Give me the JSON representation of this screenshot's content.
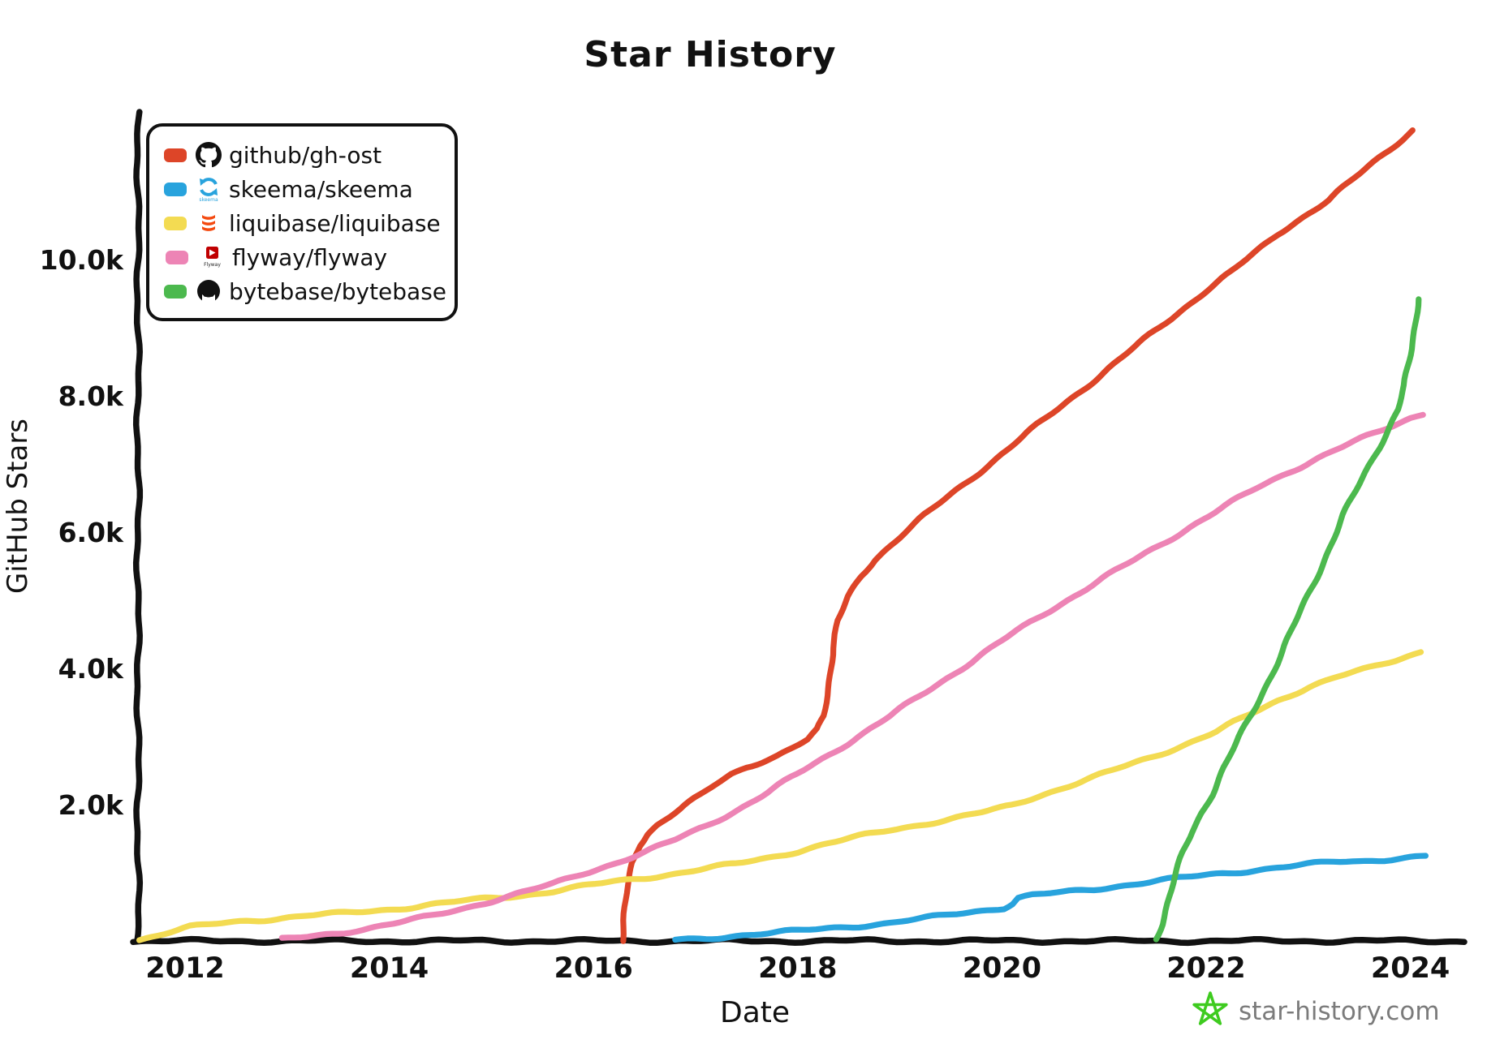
{
  "title": "Star History",
  "y_axis": {
    "label": "GitHub Stars",
    "ticks": [
      {
        "label": "10.0k",
        "value": 10000
      },
      {
        "label": "8.0k",
        "value": 8000
      },
      {
        "label": "6.0k",
        "value": 6000
      },
      {
        "label": "4.0k",
        "value": 4000
      },
      {
        "label": "2.0k",
        "value": 2000
      }
    ]
  },
  "x_axis": {
    "label": "Date",
    "ticks": [
      {
        "label": "2012",
        "year": 2012
      },
      {
        "label": "2014",
        "year": 2014
      },
      {
        "label": "2016",
        "year": 2016
      },
      {
        "label": "2018",
        "year": 2018
      },
      {
        "label": "2020",
        "year": 2020
      },
      {
        "label": "2022",
        "year": 2022
      },
      {
        "label": "2024",
        "year": 2024
      }
    ]
  },
  "legend": {
    "items": [
      {
        "label": "github/gh-ost",
        "color": "#dd4528",
        "icon": "github-icon"
      },
      {
        "label": "skeema/skeema",
        "color": "#28a3dd",
        "icon": "skeema-icon"
      },
      {
        "label": "liquibase/liquibase",
        "color": "#f3db52",
        "icon": "liquibase-icon"
      },
      {
        "label": "flyway/flyway",
        "color": "#ed84b5",
        "icon": "flyway-icon"
      },
      {
        "label": "bytebase/bytebase",
        "color": "#4cb94e",
        "icon": "bytebase-icon"
      }
    ]
  },
  "footer": {
    "site": "star-history.com",
    "star_color": "#3ecb1f",
    "text_color": "#7b7b7b"
  },
  "chart_data": {
    "type": "line",
    "title": "Star History",
    "xlabel": "Date",
    "ylabel": "GitHub Stars",
    "x_range": [
      2011.5,
      2024.45
    ],
    "y_range": [
      0,
      12000
    ],
    "grid": false,
    "legend_position": "top-left",
    "axis_color": "#111111",
    "series": [
      {
        "name": "github/gh-ost",
        "color": "#dd4528",
        "points": [
          [
            2016.28,
            0
          ],
          [
            2016.31,
            400
          ],
          [
            2016.34,
            800
          ],
          [
            2016.38,
            1150
          ],
          [
            2016.44,
            1400
          ],
          [
            2016.52,
            1570
          ],
          [
            2016.62,
            1700
          ],
          [
            2016.75,
            1830
          ],
          [
            2016.9,
            1990
          ],
          [
            2017.05,
            2130
          ],
          [
            2017.2,
            2300
          ],
          [
            2017.35,
            2450
          ],
          [
            2017.5,
            2560
          ],
          [
            2017.65,
            2640
          ],
          [
            2017.8,
            2720
          ],
          [
            2017.95,
            2830
          ],
          [
            2018.1,
            2950
          ],
          [
            2018.2,
            3100
          ],
          [
            2018.26,
            3300
          ],
          [
            2018.3,
            3800
          ],
          [
            2018.34,
            4300
          ],
          [
            2018.4,
            4700
          ],
          [
            2018.5,
            5050
          ],
          [
            2018.62,
            5350
          ],
          [
            2018.75,
            5600
          ],
          [
            2018.9,
            5800
          ],
          [
            2019.05,
            6000
          ],
          [
            2019.25,
            6250
          ],
          [
            2019.5,
            6550
          ],
          [
            2019.75,
            6850
          ],
          [
            2020,
            7150
          ],
          [
            2020.25,
            7450
          ],
          [
            2020.5,
            7750
          ],
          [
            2020.75,
            8050
          ],
          [
            2021,
            8350
          ],
          [
            2021.25,
            8650
          ],
          [
            2021.5,
            8950
          ],
          [
            2021.75,
            9250
          ],
          [
            2022,
            9550
          ],
          [
            2022.25,
            9820
          ],
          [
            2022.5,
            10120
          ],
          [
            2022.7,
            10380
          ],
          [
            2022.85,
            10530
          ],
          [
            2023,
            10680
          ],
          [
            2023.2,
            10870
          ],
          [
            2023.4,
            11120
          ],
          [
            2023.6,
            11380
          ],
          [
            2023.8,
            11630
          ],
          [
            2024.02,
            11900
          ]
        ]
      },
      {
        "name": "skeema/skeema",
        "color": "#28a3dd",
        "points": [
          [
            2016.8,
            10
          ],
          [
            2017.1,
            40
          ],
          [
            2017.4,
            80
          ],
          [
            2017.7,
            110
          ],
          [
            2018,
            145
          ],
          [
            2018.3,
            190
          ],
          [
            2018.6,
            225
          ],
          [
            2018.9,
            260
          ],
          [
            2019.2,
            320
          ],
          [
            2019.5,
            390
          ],
          [
            2019.8,
            450
          ],
          [
            2020.02,
            490
          ],
          [
            2020.1,
            550
          ],
          [
            2020.16,
            630
          ],
          [
            2020.3,
            670
          ],
          [
            2020.6,
            710
          ],
          [
            2020.9,
            760
          ],
          [
            2021.2,
            820
          ],
          [
            2021.5,
            880
          ],
          [
            2021.8,
            930
          ],
          [
            2022.1,
            980
          ],
          [
            2022.4,
            1030
          ],
          [
            2022.7,
            1080
          ],
          [
            2023,
            1120
          ],
          [
            2023.25,
            1160
          ],
          [
            2023.5,
            1170
          ],
          [
            2023.75,
            1200
          ],
          [
            2024,
            1230
          ],
          [
            2024.15,
            1245
          ]
        ]
      },
      {
        "name": "liquibase/liquibase",
        "color": "#f3db52",
        "points": [
          [
            2011.55,
            20
          ],
          [
            2011.8,
            110
          ],
          [
            2012.05,
            200
          ],
          [
            2012.3,
            250
          ],
          [
            2012.6,
            300
          ],
          [
            2012.9,
            330
          ],
          [
            2013.2,
            370
          ],
          [
            2013.5,
            400
          ],
          [
            2013.8,
            440
          ],
          [
            2014.1,
            480
          ],
          [
            2014.4,
            530
          ],
          [
            2014.7,
            580
          ],
          [
            2015,
            630
          ],
          [
            2015.3,
            670
          ],
          [
            2015.6,
            730
          ],
          [
            2015.9,
            800
          ],
          [
            2016.2,
            870
          ],
          [
            2016.5,
            930
          ],
          [
            2016.8,
            990
          ],
          [
            2017.1,
            1060
          ],
          [
            2017.4,
            1130
          ],
          [
            2017.7,
            1220
          ],
          [
            2018,
            1320
          ],
          [
            2018.3,
            1430
          ],
          [
            2018.6,
            1530
          ],
          [
            2018.9,
            1630
          ],
          [
            2019.2,
            1710
          ],
          [
            2019.5,
            1790
          ],
          [
            2019.8,
            1880
          ],
          [
            2020.1,
            1990
          ],
          [
            2020.35,
            2130
          ],
          [
            2020.6,
            2250
          ],
          [
            2020.9,
            2400
          ],
          [
            2021.2,
            2560
          ],
          [
            2021.5,
            2720
          ],
          [
            2021.8,
            2890
          ],
          [
            2022.1,
            3070
          ],
          [
            2022.4,
            3300
          ],
          [
            2022.7,
            3530
          ],
          [
            2023,
            3730
          ],
          [
            2023.3,
            3880
          ],
          [
            2023.6,
            4000
          ],
          [
            2023.85,
            4120
          ],
          [
            2024.1,
            4250
          ]
        ]
      },
      {
        "name": "flyway/flyway",
        "color": "#ed84b5",
        "points": [
          [
            2012.95,
            20
          ],
          [
            2013.2,
            60
          ],
          [
            2013.5,
            120
          ],
          [
            2013.8,
            190
          ],
          [
            2014.1,
            270
          ],
          [
            2014.4,
            360
          ],
          [
            2014.7,
            470
          ],
          [
            2015,
            590
          ],
          [
            2015.3,
            710
          ],
          [
            2015.6,
            830
          ],
          [
            2015.9,
            990
          ],
          [
            2016.2,
            1140
          ],
          [
            2016.5,
            1300
          ],
          [
            2016.8,
            1480
          ],
          [
            2017.1,
            1690
          ],
          [
            2017.4,
            1920
          ],
          [
            2017.7,
            2170
          ],
          [
            2018,
            2450
          ],
          [
            2018.3,
            2730
          ],
          [
            2018.6,
            3010
          ],
          [
            2018.9,
            3290
          ],
          [
            2019.2,
            3600
          ],
          [
            2019.5,
            3900
          ],
          [
            2019.8,
            4200
          ],
          [
            2020.1,
            4500
          ],
          [
            2020.4,
            4790
          ],
          [
            2020.7,
            5060
          ],
          [
            2021,
            5330
          ],
          [
            2021.3,
            5590
          ],
          [
            2021.6,
            5860
          ],
          [
            2021.9,
            6130
          ],
          [
            2022.2,
            6390
          ],
          [
            2022.5,
            6650
          ],
          [
            2022.8,
            6880
          ],
          [
            2023.1,
            7090
          ],
          [
            2023.4,
            7290
          ],
          [
            2023.7,
            7480
          ],
          [
            2024,
            7680
          ],
          [
            2024.12,
            7740
          ]
        ]
      },
      {
        "name": "bytebase/bytebase",
        "color": "#4cb94e",
        "points": [
          [
            2021.5,
            30
          ],
          [
            2021.56,
            250
          ],
          [
            2021.62,
            550
          ],
          [
            2021.7,
            950
          ],
          [
            2021.78,
            1300
          ],
          [
            2021.86,
            1600
          ],
          [
            2021.95,
            1880
          ],
          [
            2022.05,
            2150
          ],
          [
            2022.18,
            2550
          ],
          [
            2022.3,
            2900
          ],
          [
            2022.45,
            3350
          ],
          [
            2022.6,
            3800
          ],
          [
            2022.75,
            4250
          ],
          [
            2022.9,
            4750
          ],
          [
            2023.05,
            5250
          ],
          [
            2023.2,
            5750
          ],
          [
            2023.35,
            6250
          ],
          [
            2023.5,
            6700
          ],
          [
            2023.65,
            7150
          ],
          [
            2023.78,
            7500
          ],
          [
            2023.88,
            7800
          ],
          [
            2023.95,
            8150
          ],
          [
            2024,
            8600
          ],
          [
            2024.04,
            9050
          ],
          [
            2024.07,
            9420
          ]
        ]
      }
    ]
  }
}
